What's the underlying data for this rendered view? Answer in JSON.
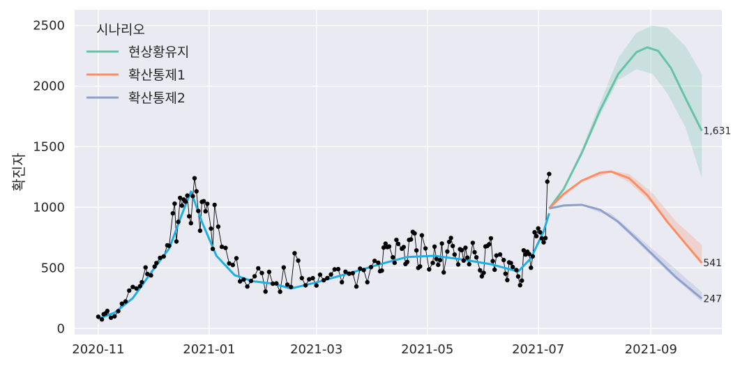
{
  "chart_data": {
    "type": "line",
    "ylabel": "확진자",
    "xlabel": "",
    "title": "",
    "ylim": [
      -50,
      2630
    ],
    "xlim": [
      "2020-10-19",
      "2021-10-10"
    ],
    "yticks": [
      0,
      500,
      1000,
      1500,
      2000,
      2500
    ],
    "xticks": [
      {
        "date": "2020-11-01",
        "label": "2020-11"
      },
      {
        "date": "2021-01-01",
        "label": "2021-01"
      },
      {
        "date": "2021-03-01",
        "label": "2021-03"
      },
      {
        "date": "2021-05-01",
        "label": "2021-05"
      },
      {
        "date": "2021-07-01",
        "label": "2021-07"
      },
      {
        "date": "2021-09-01",
        "label": "2021-09"
      }
    ],
    "grid": true,
    "legend": {
      "title": "시나리오",
      "position": "top-left"
    },
    "observed": {
      "color": "#000000",
      "points": [
        [
          "2020-11-01",
          97
        ],
        [
          "2020-11-03",
          75
        ],
        [
          "2020-11-04",
          118
        ],
        [
          "2020-11-05",
          125
        ],
        [
          "2020-11-06",
          145
        ],
        [
          "2020-11-08",
          89
        ],
        [
          "2020-11-10",
          100
        ],
        [
          "2020-11-12",
          143
        ],
        [
          "2020-11-14",
          205
        ],
        [
          "2020-11-16",
          223
        ],
        [
          "2020-11-18",
          313
        ],
        [
          "2020-11-20",
          343
        ],
        [
          "2020-11-22",
          330
        ],
        [
          "2020-11-24",
          349
        ],
        [
          "2020-11-25",
          382
        ],
        [
          "2020-11-27",
          504
        ],
        [
          "2020-11-28",
          450
        ],
        [
          "2020-11-30",
          438
        ],
        [
          "2020-12-02",
          511
        ],
        [
          "2020-12-03",
          540
        ],
        [
          "2020-12-05",
          583
        ],
        [
          "2020-12-07",
          594
        ],
        [
          "2020-12-09",
          686
        ],
        [
          "2020-12-10",
          682
        ],
        [
          "2020-12-12",
          950
        ],
        [
          "2020-12-13",
          1030
        ],
        [
          "2020-12-14",
          718
        ],
        [
          "2020-12-15",
          880
        ],
        [
          "2020-12-16",
          1078
        ],
        [
          "2020-12-17",
          1014
        ],
        [
          "2020-12-18",
          1064
        ],
        [
          "2020-12-19",
          1047
        ],
        [
          "2020-12-20",
          1097
        ],
        [
          "2020-12-21",
          926
        ],
        [
          "2020-12-22",
          869
        ],
        [
          "2020-12-23",
          1092
        ],
        [
          "2020-12-24",
          1240
        ],
        [
          "2020-12-25",
          1132
        ],
        [
          "2020-12-26",
          970
        ],
        [
          "2020-12-27",
          807
        ],
        [
          "2020-12-28",
          1045
        ],
        [
          "2020-12-29",
          1050
        ],
        [
          "2020-12-30",
          967
        ],
        [
          "2020-12-31",
          1029
        ],
        [
          "2021-01-02",
          824
        ],
        [
          "2021-01-03",
          657
        ],
        [
          "2021-01-04",
          1020
        ],
        [
          "2021-01-06",
          840
        ],
        [
          "2021-01-08",
          674
        ],
        [
          "2021-01-10",
          665
        ],
        [
          "2021-01-12",
          537
        ],
        [
          "2021-01-14",
          524
        ],
        [
          "2021-01-16",
          580
        ],
        [
          "2021-01-18",
          389
        ],
        [
          "2021-01-20",
          404
        ],
        [
          "2021-01-22",
          346
        ],
        [
          "2021-01-24",
          392
        ],
        [
          "2021-01-26",
          431
        ],
        [
          "2021-01-28",
          497
        ],
        [
          "2021-01-30",
          458
        ],
        [
          "2021-02-01",
          305
        ],
        [
          "2021-02-03",
          467
        ],
        [
          "2021-02-05",
          370
        ],
        [
          "2021-02-07",
          372
        ],
        [
          "2021-02-09",
          303
        ],
        [
          "2021-02-11",
          504
        ],
        [
          "2021-02-13",
          362
        ],
        [
          "2021-02-15",
          343
        ],
        [
          "2021-02-17",
          621
        ],
        [
          "2021-02-19",
          561
        ],
        [
          "2021-02-21",
          416
        ],
        [
          "2021-02-23",
          356
        ],
        [
          "2021-02-25",
          406
        ],
        [
          "2021-02-27",
          415
        ],
        [
          "2021-03-01",
          355
        ],
        [
          "2021-03-03",
          444
        ],
        [
          "2021-03-05",
          398
        ],
        [
          "2021-03-07",
          416
        ],
        [
          "2021-03-09",
          446
        ],
        [
          "2021-03-11",
          488
        ],
        [
          "2021-03-13",
          490
        ],
        [
          "2021-03-15",
          382
        ],
        [
          "2021-03-17",
          469
        ],
        [
          "2021-03-19",
          452
        ],
        [
          "2021-03-21",
          456
        ],
        [
          "2021-03-23",
          346
        ],
        [
          "2021-03-25",
          494
        ],
        [
          "2021-03-27",
          482
        ],
        [
          "2021-03-29",
          382
        ],
        [
          "2021-03-31",
          506
        ],
        [
          "2021-04-02",
          558
        ],
        [
          "2021-04-04",
          543
        ],
        [
          "2021-04-05",
          473
        ],
        [
          "2021-04-06",
          478
        ],
        [
          "2021-04-07",
          668
        ],
        [
          "2021-04-08",
          700
        ],
        [
          "2021-04-09",
          671
        ],
        [
          "2021-04-10",
          677
        ],
        [
          "2021-04-12",
          587
        ],
        [
          "2021-04-13",
          542
        ],
        [
          "2021-04-14",
          731
        ],
        [
          "2021-04-15",
          698
        ],
        [
          "2021-04-17",
          658
        ],
        [
          "2021-04-18",
          672
        ],
        [
          "2021-04-19",
          532
        ],
        [
          "2021-04-20",
          549
        ],
        [
          "2021-04-21",
          731
        ],
        [
          "2021-04-22",
          735
        ],
        [
          "2021-04-23",
          797
        ],
        [
          "2021-04-24",
          785
        ],
        [
          "2021-04-25",
          644
        ],
        [
          "2021-04-26",
          500
        ],
        [
          "2021-04-27",
          512
        ],
        [
          "2021-04-28",
          769
        ],
        [
          "2021-04-30",
          661
        ],
        [
          "2021-05-02",
          488
        ],
        [
          "2021-05-04",
          541
        ],
        [
          "2021-05-05",
          676
        ],
        [
          "2021-05-06",
          574
        ],
        [
          "2021-05-07",
          525
        ],
        [
          "2021-05-08",
          564
        ],
        [
          "2021-05-09",
          701
        ],
        [
          "2021-05-10",
          463
        ],
        [
          "2021-05-12",
          635
        ],
        [
          "2021-05-13",
          715
        ],
        [
          "2021-05-14",
          747
        ],
        [
          "2021-05-15",
          681
        ],
        [
          "2021-05-16",
          610
        ],
        [
          "2021-05-18",
          528
        ],
        [
          "2021-05-19",
          654
        ],
        [
          "2021-05-20",
          646
        ],
        [
          "2021-05-21",
          561
        ],
        [
          "2021-05-22",
          666
        ],
        [
          "2021-05-23",
          585
        ],
        [
          "2021-05-24",
          530
        ],
        [
          "2021-05-26",
          707
        ],
        [
          "2021-05-27",
          629
        ],
        [
          "2021-05-28",
          587
        ],
        [
          "2021-05-30",
          480
        ],
        [
          "2021-05-31",
          430
        ],
        [
          "2021-06-01",
          459
        ],
        [
          "2021-06-02",
          677
        ],
        [
          "2021-06-03",
          681
        ],
        [
          "2021-06-04",
          695
        ],
        [
          "2021-06-05",
          744
        ],
        [
          "2021-06-06",
          556
        ],
        [
          "2021-06-07",
          485
        ],
        [
          "2021-06-08",
          602
        ],
        [
          "2021-06-10",
          611
        ],
        [
          "2021-06-12",
          565
        ],
        [
          "2021-06-13",
          452
        ],
        [
          "2021-06-14",
          399
        ],
        [
          "2021-06-15",
          545
        ],
        [
          "2021-06-16",
          540
        ],
        [
          "2021-06-17",
          507
        ],
        [
          "2021-06-19",
          482
        ],
        [
          "2021-06-20",
          429
        ],
        [
          "2021-06-21",
          357
        ],
        [
          "2021-06-22",
          395
        ],
        [
          "2021-06-23",
          645
        ],
        [
          "2021-06-24",
          610
        ],
        [
          "2021-06-25",
          634
        ],
        [
          "2021-06-26",
          614
        ],
        [
          "2021-06-27",
          501
        ],
        [
          "2021-06-28",
          595
        ],
        [
          "2021-06-29",
          794
        ],
        [
          "2021-06-30",
          762
        ],
        [
          "2021-07-01",
          826
        ],
        [
          "2021-07-02",
          794
        ],
        [
          "2021-07-03",
          743
        ],
        [
          "2021-07-04",
          711
        ],
        [
          "2021-07-05",
          746
        ],
        [
          "2021-07-06",
          1212
        ],
        [
          "2021-07-07",
          1275
        ]
      ]
    },
    "smoothed": {
      "color": "#1ab0e6",
      "points": [
        [
          "2020-11-01",
          80
        ],
        [
          "2020-11-10",
          130
        ],
        [
          "2020-11-20",
          250
        ],
        [
          "2020-12-01",
          480
        ],
        [
          "2020-12-10",
          660
        ],
        [
          "2020-12-18",
          980
        ],
        [
          "2020-12-22",
          1130
        ],
        [
          "2020-12-28",
          880
        ],
        [
          "2021-01-05",
          600
        ],
        [
          "2021-01-15",
          440
        ],
        [
          "2021-01-25",
          390
        ],
        [
          "2021-02-05",
          370
        ],
        [
          "2021-02-15",
          330
        ],
        [
          "2021-03-01",
          380
        ],
        [
          "2021-03-20",
          460
        ],
        [
          "2021-04-05",
          530
        ],
        [
          "2021-04-20",
          590
        ],
        [
          "2021-05-05",
          600
        ],
        [
          "2021-05-20",
          570
        ],
        [
          "2021-06-05",
          530
        ],
        [
          "2021-06-20",
          470
        ],
        [
          "2021-06-27",
          580
        ],
        [
          "2021-07-04",
          800
        ],
        [
          "2021-07-07",
          950
        ]
      ]
    },
    "series": [
      {
        "name": "현상황유지",
        "color": "#66c2a5",
        "end_label": "1,631",
        "points": [
          [
            "2021-07-07",
            990
          ],
          [
            "2021-07-15",
            1150
          ],
          [
            "2021-07-25",
            1450
          ],
          [
            "2021-08-04",
            1800
          ],
          [
            "2021-08-14",
            2100
          ],
          [
            "2021-08-24",
            2280
          ],
          [
            "2021-08-30",
            2320
          ],
          [
            "2021-09-05",
            2290
          ],
          [
            "2021-09-12",
            2150
          ],
          [
            "2021-09-20",
            1900
          ],
          [
            "2021-09-29",
            1631
          ]
        ],
        "upper": [
          [
            "2021-07-07",
            990
          ],
          [
            "2021-07-15",
            1160
          ],
          [
            "2021-07-25",
            1480
          ],
          [
            "2021-08-04",
            1860
          ],
          [
            "2021-08-14",
            2230
          ],
          [
            "2021-08-24",
            2440
          ],
          [
            "2021-09-02",
            2500
          ],
          [
            "2021-09-10",
            2480
          ],
          [
            "2021-09-20",
            2330
          ],
          [
            "2021-09-29",
            2100
          ]
        ],
        "lower": [
          [
            "2021-07-07",
            990
          ],
          [
            "2021-07-15",
            1140
          ],
          [
            "2021-07-25",
            1430
          ],
          [
            "2021-08-04",
            1760
          ],
          [
            "2021-08-14",
            2050
          ],
          [
            "2021-08-24",
            2140
          ],
          [
            "2021-09-02",
            2100
          ],
          [
            "2021-09-10",
            1940
          ],
          [
            "2021-09-20",
            1660
          ],
          [
            "2021-09-29",
            1240
          ]
        ]
      },
      {
        "name": "확산통제1",
        "color": "#fc8d62",
        "end_label": "541",
        "points": [
          [
            "2021-07-07",
            990
          ],
          [
            "2021-07-15",
            1110
          ],
          [
            "2021-07-25",
            1220
          ],
          [
            "2021-08-04",
            1285
          ],
          [
            "2021-08-10",
            1295
          ],
          [
            "2021-08-20",
            1240
          ],
          [
            "2021-08-30",
            1100
          ],
          [
            "2021-09-10",
            880
          ],
          [
            "2021-09-20",
            700
          ],
          [
            "2021-09-29",
            541
          ]
        ],
        "upper": [
          [
            "2021-07-07",
            990
          ],
          [
            "2021-07-25",
            1230
          ],
          [
            "2021-08-10",
            1305
          ],
          [
            "2021-08-20",
            1275
          ],
          [
            "2021-09-01",
            1130
          ],
          [
            "2021-09-15",
            880
          ],
          [
            "2021-09-29",
            690
          ]
        ],
        "lower": [
          [
            "2021-07-07",
            990
          ],
          [
            "2021-07-25",
            1210
          ],
          [
            "2021-08-10",
            1285
          ],
          [
            "2021-08-20",
            1205
          ],
          [
            "2021-09-01",
            1040
          ],
          [
            "2021-09-15",
            780
          ],
          [
            "2021-09-29",
            520
          ]
        ]
      },
      {
        "name": "확산통제2",
        "color": "#8da0cb",
        "end_label": "247",
        "points": [
          [
            "2021-07-07",
            990
          ],
          [
            "2021-07-15",
            1015
          ],
          [
            "2021-07-25",
            1020
          ],
          [
            "2021-08-04",
            980
          ],
          [
            "2021-08-14",
            880
          ],
          [
            "2021-08-24",
            740
          ],
          [
            "2021-09-04",
            580
          ],
          [
            "2021-09-15",
            420
          ],
          [
            "2021-09-29",
            247
          ]
        ],
        "upper": [
          [
            "2021-07-07",
            990
          ],
          [
            "2021-07-25",
            1025
          ],
          [
            "2021-08-10",
            950
          ],
          [
            "2021-08-24",
            770
          ],
          [
            "2021-09-10",
            550
          ],
          [
            "2021-09-29",
            300
          ]
        ],
        "lower": [
          [
            "2021-07-07",
            990
          ],
          [
            "2021-07-25",
            1015
          ],
          [
            "2021-08-10",
            920
          ],
          [
            "2021-08-24",
            720
          ],
          [
            "2021-09-10",
            470
          ],
          [
            "2021-09-29",
            220
          ]
        ]
      }
    ]
  }
}
